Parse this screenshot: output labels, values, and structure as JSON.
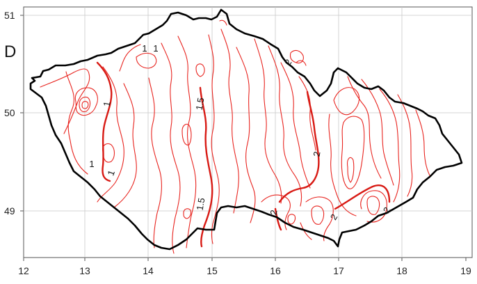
{
  "panel_label": "D",
  "x_axis": {
    "ticks": [
      "12",
      "13",
      "14",
      "15",
      "16",
      "17",
      "18",
      "19"
    ]
  },
  "y_axis": {
    "ticks": [
      "51",
      "50",
      "49"
    ]
  },
  "contour_labels": [
    "1",
    "1",
    "1",
    "1",
    "1",
    "1.5",
    "1.5",
    "2",
    "2",
    "2",
    "2",
    "2"
  ],
  "colors": {
    "contour": "#e8231e",
    "border": "#000000",
    "grid": "#c8c8c8"
  }
}
